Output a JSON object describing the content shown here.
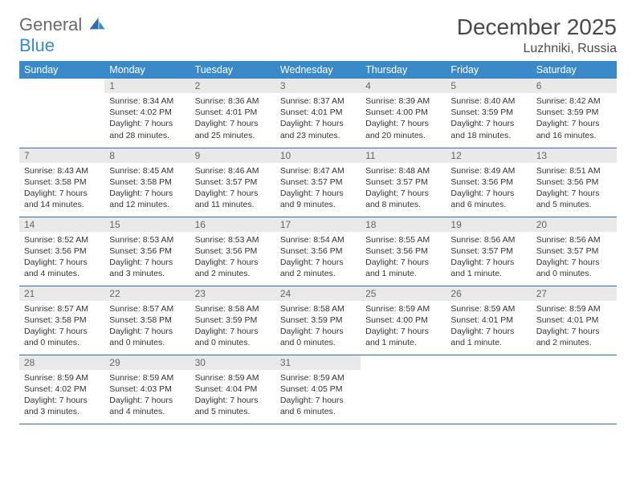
{
  "logo": {
    "part1": "General",
    "part2": "Blue"
  },
  "title": "December 2025",
  "location": "Luzhniki, Russia",
  "weekdays": [
    "Sunday",
    "Monday",
    "Tuesday",
    "Wednesday",
    "Thursday",
    "Friday",
    "Saturday"
  ],
  "colors": {
    "header_bg": "#3a8ac9",
    "header_text": "#ffffff",
    "daynum_bg": "#e9e9e9",
    "border": "#3a6a9a",
    "logo_gray": "#6a6a6a",
    "logo_blue": "#3a8ac9"
  },
  "weeks": [
    [
      {
        "n": "",
        "sunrise": "",
        "sunset": "",
        "daylight": ""
      },
      {
        "n": "1",
        "sunrise": "Sunrise: 8:34 AM",
        "sunset": "Sunset: 4:02 PM",
        "daylight": "Daylight: 7 hours and 28 minutes."
      },
      {
        "n": "2",
        "sunrise": "Sunrise: 8:36 AM",
        "sunset": "Sunset: 4:01 PM",
        "daylight": "Daylight: 7 hours and 25 minutes."
      },
      {
        "n": "3",
        "sunrise": "Sunrise: 8:37 AM",
        "sunset": "Sunset: 4:01 PM",
        "daylight": "Daylight: 7 hours and 23 minutes."
      },
      {
        "n": "4",
        "sunrise": "Sunrise: 8:39 AM",
        "sunset": "Sunset: 4:00 PM",
        "daylight": "Daylight: 7 hours and 20 minutes."
      },
      {
        "n": "5",
        "sunrise": "Sunrise: 8:40 AM",
        "sunset": "Sunset: 3:59 PM",
        "daylight": "Daylight: 7 hours and 18 minutes."
      },
      {
        "n": "6",
        "sunrise": "Sunrise: 8:42 AM",
        "sunset": "Sunset: 3:59 PM",
        "daylight": "Daylight: 7 hours and 16 minutes."
      }
    ],
    [
      {
        "n": "7",
        "sunrise": "Sunrise: 8:43 AM",
        "sunset": "Sunset: 3:58 PM",
        "daylight": "Daylight: 7 hours and 14 minutes."
      },
      {
        "n": "8",
        "sunrise": "Sunrise: 8:45 AM",
        "sunset": "Sunset: 3:58 PM",
        "daylight": "Daylight: 7 hours and 12 minutes."
      },
      {
        "n": "9",
        "sunrise": "Sunrise: 8:46 AM",
        "sunset": "Sunset: 3:57 PM",
        "daylight": "Daylight: 7 hours and 11 minutes."
      },
      {
        "n": "10",
        "sunrise": "Sunrise: 8:47 AM",
        "sunset": "Sunset: 3:57 PM",
        "daylight": "Daylight: 7 hours and 9 minutes."
      },
      {
        "n": "11",
        "sunrise": "Sunrise: 8:48 AM",
        "sunset": "Sunset: 3:57 PM",
        "daylight": "Daylight: 7 hours and 8 minutes."
      },
      {
        "n": "12",
        "sunrise": "Sunrise: 8:49 AM",
        "sunset": "Sunset: 3:56 PM",
        "daylight": "Daylight: 7 hours and 6 minutes."
      },
      {
        "n": "13",
        "sunrise": "Sunrise: 8:51 AM",
        "sunset": "Sunset: 3:56 PM",
        "daylight": "Daylight: 7 hours and 5 minutes."
      }
    ],
    [
      {
        "n": "14",
        "sunrise": "Sunrise: 8:52 AM",
        "sunset": "Sunset: 3:56 PM",
        "daylight": "Daylight: 7 hours and 4 minutes."
      },
      {
        "n": "15",
        "sunrise": "Sunrise: 8:53 AM",
        "sunset": "Sunset: 3:56 PM",
        "daylight": "Daylight: 7 hours and 3 minutes."
      },
      {
        "n": "16",
        "sunrise": "Sunrise: 8:53 AM",
        "sunset": "Sunset: 3:56 PM",
        "daylight": "Daylight: 7 hours and 2 minutes."
      },
      {
        "n": "17",
        "sunrise": "Sunrise: 8:54 AM",
        "sunset": "Sunset: 3:56 PM",
        "daylight": "Daylight: 7 hours and 2 minutes."
      },
      {
        "n": "18",
        "sunrise": "Sunrise: 8:55 AM",
        "sunset": "Sunset: 3:56 PM",
        "daylight": "Daylight: 7 hours and 1 minute."
      },
      {
        "n": "19",
        "sunrise": "Sunrise: 8:56 AM",
        "sunset": "Sunset: 3:57 PM",
        "daylight": "Daylight: 7 hours and 1 minute."
      },
      {
        "n": "20",
        "sunrise": "Sunrise: 8:56 AM",
        "sunset": "Sunset: 3:57 PM",
        "daylight": "Daylight: 7 hours and 0 minutes."
      }
    ],
    [
      {
        "n": "21",
        "sunrise": "Sunrise: 8:57 AM",
        "sunset": "Sunset: 3:58 PM",
        "daylight": "Daylight: 7 hours and 0 minutes."
      },
      {
        "n": "22",
        "sunrise": "Sunrise: 8:57 AM",
        "sunset": "Sunset: 3:58 PM",
        "daylight": "Daylight: 7 hours and 0 minutes."
      },
      {
        "n": "23",
        "sunrise": "Sunrise: 8:58 AM",
        "sunset": "Sunset: 3:59 PM",
        "daylight": "Daylight: 7 hours and 0 minutes."
      },
      {
        "n": "24",
        "sunrise": "Sunrise: 8:58 AM",
        "sunset": "Sunset: 3:59 PM",
        "daylight": "Daylight: 7 hours and 0 minutes."
      },
      {
        "n": "25",
        "sunrise": "Sunrise: 8:59 AM",
        "sunset": "Sunset: 4:00 PM",
        "daylight": "Daylight: 7 hours and 1 minute."
      },
      {
        "n": "26",
        "sunrise": "Sunrise: 8:59 AM",
        "sunset": "Sunset: 4:01 PM",
        "daylight": "Daylight: 7 hours and 1 minute."
      },
      {
        "n": "27",
        "sunrise": "Sunrise: 8:59 AM",
        "sunset": "Sunset: 4:01 PM",
        "daylight": "Daylight: 7 hours and 2 minutes."
      }
    ],
    [
      {
        "n": "28",
        "sunrise": "Sunrise: 8:59 AM",
        "sunset": "Sunset: 4:02 PM",
        "daylight": "Daylight: 7 hours and 3 minutes."
      },
      {
        "n": "29",
        "sunrise": "Sunrise: 8:59 AM",
        "sunset": "Sunset: 4:03 PM",
        "daylight": "Daylight: 7 hours and 4 minutes."
      },
      {
        "n": "30",
        "sunrise": "Sunrise: 8:59 AM",
        "sunset": "Sunset: 4:04 PM",
        "daylight": "Daylight: 7 hours and 5 minutes."
      },
      {
        "n": "31",
        "sunrise": "Sunrise: 8:59 AM",
        "sunset": "Sunset: 4:05 PM",
        "daylight": "Daylight: 7 hours and 6 minutes."
      },
      {
        "n": "",
        "sunrise": "",
        "sunset": "",
        "daylight": ""
      },
      {
        "n": "",
        "sunrise": "",
        "sunset": "",
        "daylight": ""
      },
      {
        "n": "",
        "sunrise": "",
        "sunset": "",
        "daylight": ""
      }
    ]
  ]
}
